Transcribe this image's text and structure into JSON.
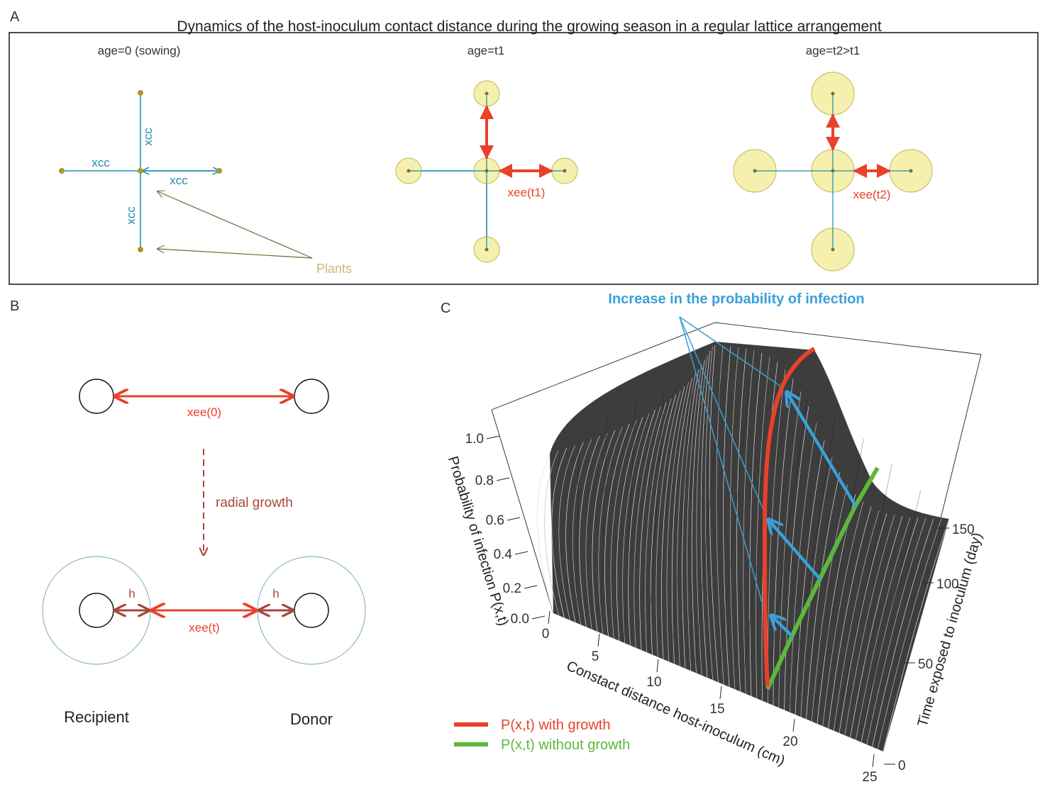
{
  "panel_a": {
    "letter": "A",
    "title": "Dynamics of the host-inoculum contact distance during the growing season in a regular lattice arrangement",
    "stage_labels": [
      "age=0 (sowing)",
      "age=t1",
      "age=t2>t1"
    ],
    "xcc": "xcc",
    "plants": "Plants",
    "xee_t1": "xee(t1)",
    "xee_t2": "xee(t2)"
  },
  "panel_b": {
    "letter": "B",
    "xee0": "xee(0)",
    "radial_growth": "radial growth",
    "h": "h",
    "xeet": "xee(t)",
    "recipient": "Recipient",
    "donor": "Donor"
  },
  "panel_c": {
    "letter": "C",
    "annotation": "Increase in the probability of infection",
    "z_axis_label": "Probability of infection P(x,t)",
    "z_ticks": [
      "0.0",
      "0.2",
      "0.4",
      "0.6",
      "0.8",
      "1.0"
    ],
    "x_axis_label": "Constact distance host-inoculum (cm)",
    "x_ticks": [
      "0",
      "5",
      "10",
      "15",
      "20",
      "25"
    ],
    "y_axis_label": "Time exposed to inoculum (day)",
    "y_ticks": [
      "0",
      "50",
      "100",
      "150"
    ],
    "legend": [
      {
        "label": "P(x,t) with growth",
        "color": "#e8412c"
      },
      {
        "label": "P(x,t) without growth",
        "color": "#5cb83c"
      }
    ]
  },
  "colors": {
    "teal": "#1f8fa8",
    "red": "#e8412c",
    "olive": "#6b6b3a",
    "plant_fill": "#f3eda0",
    "plant_stroke": "#c9c06a",
    "blue_arrow": "#3aa0d8",
    "surface": "#2a2a2a"
  }
}
